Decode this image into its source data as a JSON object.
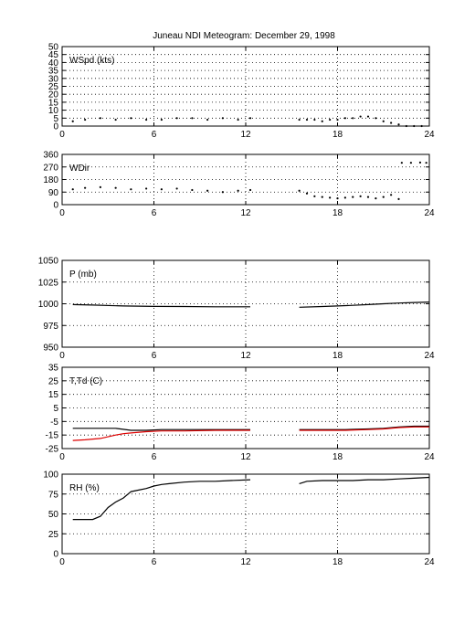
{
  "figure": {
    "title": "Juneau NDI Meteogram:   December 29, 1998"
  },
  "chart_data": [
    {
      "type": "scatter",
      "panel_label": "WSpd (kts)",
      "xlim": [
        0,
        24
      ],
      "ylim": [
        0,
        50
      ],
      "xticks": [
        0,
        6,
        12,
        18,
        24
      ],
      "yticks": [
        0,
        5,
        10,
        15,
        20,
        25,
        30,
        35,
        40,
        45,
        50
      ],
      "grid": true,
      "series": [
        {
          "color": "#000000",
          "segments": [
            {
              "x": [
                0.7,
                1.5,
                2.5,
                3.5,
                4.5,
                5.5,
                6.5,
                7.5,
                8.5,
                9.5,
                10.5,
                11.5,
                12.3
              ],
              "y": [
                3,
                4,
                5,
                4,
                5,
                4,
                4,
                5,
                5,
                4,
                5,
                4,
                5
              ]
            },
            {
              "x": [
                15.5,
                16.0,
                16.5,
                17.0,
                17.5,
                18.0,
                18.5,
                19.0,
                19.5,
                20.0,
                20.5,
                21.0,
                21.5,
                22.0
              ],
              "y": [
                4,
                4,
                4,
                3,
                4,
                4,
                5,
                5,
                6,
                6,
                5,
                3,
                2,
                1
              ]
            },
            {
              "x": [
                22.5,
                23.0,
                23.5
              ],
              "y": [
                0,
                0,
                0
              ]
            }
          ]
        }
      ]
    },
    {
      "type": "scatter",
      "panel_label": "WDir",
      "xlim": [
        0,
        24
      ],
      "ylim": [
        0,
        360
      ],
      "xticks": [
        0,
        6,
        12,
        18,
        24
      ],
      "yticks": [
        0,
        90,
        180,
        270,
        360
      ],
      "grid": true,
      "series": [
        {
          "color": "#000000",
          "segments": [
            {
              "x": [
                0.7,
                1.5,
                2.5,
                3.5,
                4.5,
                5.5,
                6.5,
                7.5,
                8.5,
                9.5,
                10.5,
                11.5,
                12.3
              ],
              "y": [
                110,
                120,
                125,
                120,
                110,
                115,
                110,
                115,
                105,
                100,
                90,
                100,
                105
              ]
            },
            {
              "x": [
                15.5,
                16.0,
                16.5,
                17.0,
                17.5,
                18.0,
                18.5,
                19.0,
                19.5,
                20.0,
                20.5,
                21.0,
                21.5,
                22.0
              ],
              "y": [
                100,
                80,
                60,
                55,
                50,
                45,
                50,
                55,
                60,
                55,
                45,
                55,
                70,
                40
              ]
            },
            {
              "x": [
                22.2,
                22.8,
                23.4,
                23.8
              ],
              "y": [
                300,
                300,
                302,
                300
              ]
            }
          ]
        }
      ]
    },
    {
      "type": "line",
      "panel_label": "P (mb)",
      "xlim": [
        0,
        24
      ],
      "ylim": [
        950,
        1050
      ],
      "xticks": [
        0,
        6,
        12,
        18,
        24
      ],
      "yticks": [
        950,
        975,
        1000,
        1025,
        1050
      ],
      "grid": true,
      "series": [
        {
          "color": "#000000",
          "segments": [
            {
              "x": [
                0.7,
                2,
                4,
                6,
                8,
                10,
                12.3
              ],
              "y": [
                999,
                998.5,
                997.5,
                997,
                996.8,
                996.5,
                996.5
              ]
            },
            {
              "x": [
                15.5,
                17,
                18,
                19,
                20,
                21,
                22,
                23,
                24
              ],
              "y": [
                996,
                996.8,
                997.5,
                998.2,
                999,
                1000,
                1000.8,
                1001.5,
                1002
              ]
            }
          ]
        }
      ]
    },
    {
      "type": "line",
      "panel_label": "T,Td (C)",
      "xlim": [
        0,
        24
      ],
      "ylim": [
        -25,
        35
      ],
      "xticks": [
        0,
        6,
        12,
        18,
        24
      ],
      "yticks": [
        -25,
        -15,
        -5,
        5,
        15,
        25,
        35
      ],
      "grid": true,
      "series": [
        {
          "color": "#000000",
          "segments": [
            {
              "x": [
                0.7,
                2,
                3.5,
                4.5,
                5.5,
                6.5,
                8,
                10,
                12.3
              ],
              "y": [
                -10,
                -10,
                -10,
                -11.5,
                -11.5,
                -11,
                -11,
                -11,
                -11
              ]
            },
            {
              "x": [
                15.5,
                17,
                18.5,
                20,
                21,
                22,
                23,
                24
              ],
              "y": [
                -11,
                -11,
                -11,
                -10.5,
                -10,
                -9,
                -8.5,
                -8.5
              ]
            }
          ]
        },
        {
          "color": "#dd0000",
          "segments": [
            {
              "x": [
                0.7,
                1.5,
                2.5,
                3.5,
                4,
                4.5,
                5.5,
                6.5,
                8,
                10,
                12.3
              ],
              "y": [
                -19,
                -18.5,
                -17.5,
                -15,
                -14,
                -13.5,
                -12.5,
                -12,
                -12,
                -11.5,
                -11.5
              ]
            },
            {
              "x": [
                15.5,
                17,
                18.5,
                20,
                21,
                22,
                23,
                24
              ],
              "y": [
                -11.5,
                -11.5,
                -11.5,
                -11,
                -10.5,
                -9.5,
                -9,
                -9
              ]
            }
          ]
        }
      ]
    },
    {
      "type": "line",
      "panel_label": "RH (%)",
      "xlim": [
        0,
        24
      ],
      "ylim": [
        0,
        100
      ],
      "xticks": [
        0,
        6,
        12,
        18,
        24
      ],
      "yticks": [
        0,
        25,
        50,
        75,
        100
      ],
      "grid": true,
      "series": [
        {
          "color": "#000000",
          "segments": [
            {
              "x": [
                0.7,
                1.5,
                2,
                2.5,
                3,
                3.5,
                4,
                4.5,
                5,
                5.5,
                6,
                6.5,
                7,
                8,
                9,
                10,
                11,
                12.3
              ],
              "y": [
                43,
                43,
                43,
                47,
                58,
                65,
                70,
                78,
                80,
                82,
                85,
                87,
                88,
                90,
                91,
                91,
                92,
                93
              ]
            },
            {
              "x": [
                15.5,
                16,
                17,
                18,
                19,
                20,
                21,
                22,
                23,
                24
              ],
              "y": [
                88,
                91,
                92,
                92,
                92,
                93,
                93,
                94,
                95,
                96
              ]
            }
          ]
        }
      ]
    }
  ]
}
